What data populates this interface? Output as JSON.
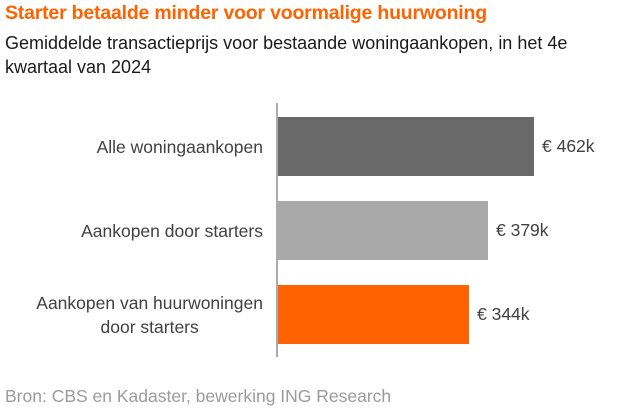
{
  "header": {
    "title": "Starter betaalde minder voor voormalige huurwoning",
    "subtitle": "Gemiddelde transactieprijs voor bestaande woningaankopen, in het 4e kwartaal van 2024"
  },
  "footer": {
    "source": "Bron: CBS en Kadaster, bewerking ING Research"
  },
  "colors": {
    "title_orange": "#ff6200",
    "bar_dark_gray": "#696969",
    "bar_light_gray": "#a9a9a9",
    "bar_orange": "#ff6200",
    "axis_line": "#ababab",
    "label_text": "#414141",
    "subtitle_text": "#1a1a1a",
    "source_text": "#9b9b9b"
  },
  "chart_data": {
    "type": "bar",
    "orientation": "horizontal",
    "title": "Starter betaalde minder voor voormalige huurwoning",
    "subtitle": "Gemiddelde transactieprijs voor bestaande woningaankopen, in het 4e kwartaal van 2024",
    "categories": [
      "Alle woningaankopen",
      "Aankopen door starters",
      "Aankopen van huurwoningen\ndoor starters"
    ],
    "values": [
      462,
      379,
      344
    ],
    "value_labels": [
      "€ 462k",
      "€ 379k",
      "€ 344k"
    ],
    "bar_colors": [
      "#696969",
      "#a9a9a9",
      "#ff6200"
    ],
    "unit": "thousand EUR",
    "xlim": [
      0,
      462
    ],
    "grid": false,
    "legend": false,
    "source": "Bron: CBS en Kadaster, bewerking ING Research"
  }
}
